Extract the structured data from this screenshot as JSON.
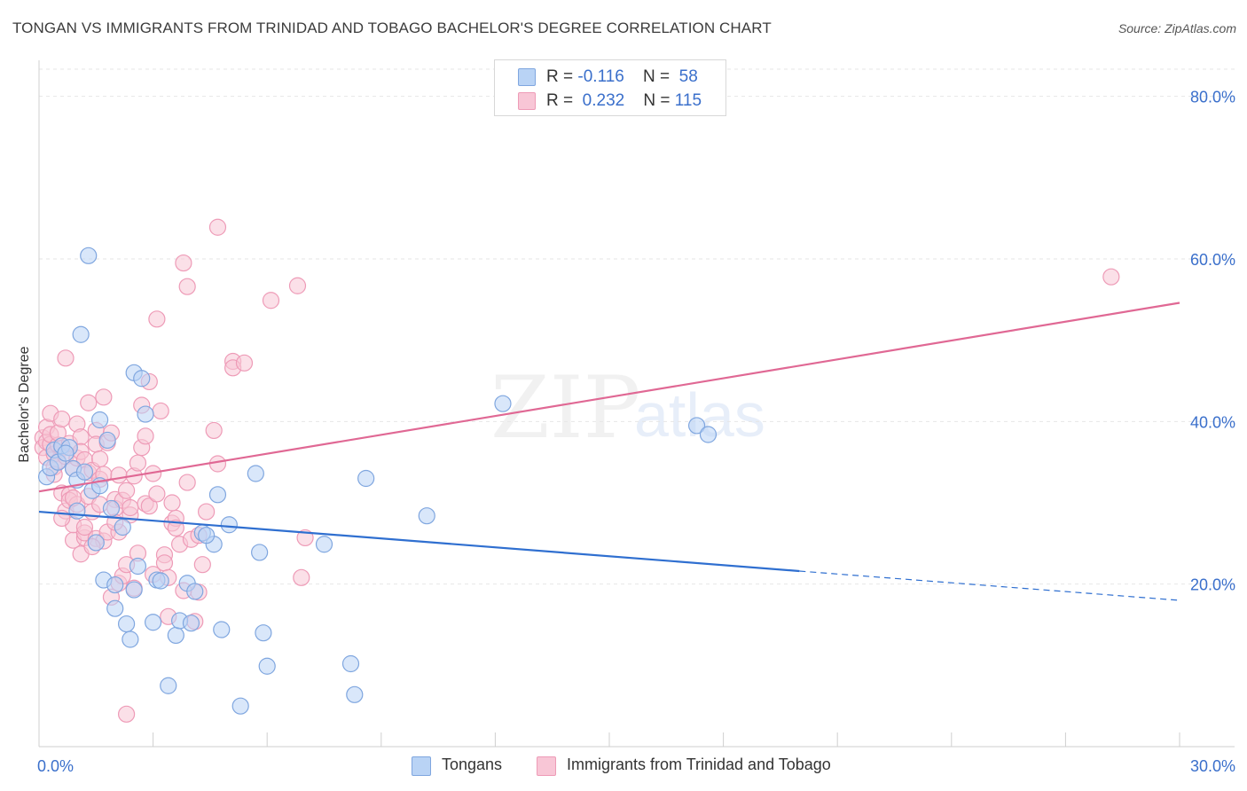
{
  "title": "TONGAN VS IMMIGRANTS FROM TRINIDAD AND TOBAGO BACHELOR'S DEGREE CORRELATION CHART",
  "source": "Source: ZipAtlas.com",
  "watermark": {
    "zip": "ZIP",
    "atlas": "atlas"
  },
  "stats": [
    {
      "r_label": "R =",
      "r_value": "-0.116",
      "n_label": "N =",
      "n_value": "58"
    },
    {
      "r_label": "R =",
      "r_value": "0.232",
      "n_label": "N =",
      "n_value": "115"
    }
  ],
  "legend": {
    "series1": "Tongans",
    "series2": "Immigrants from Trinidad and Tobago"
  },
  "chart_data": {
    "type": "scatter",
    "title": "TONGAN VS IMMIGRANTS FROM TRINIDAD AND TOBAGO BACHELOR'S DEGREE CORRELATION CHART",
    "xlabel": "",
    "ylabel": "Bachelor's Degree",
    "xlim": [
      0,
      30
    ],
    "ylim": [
      0,
      84
    ],
    "x_tick_labels": [
      {
        "value": 0,
        "label": "0.0%"
      },
      {
        "value": 30,
        "label": "30.0%"
      }
    ],
    "y_tick_labels": [
      {
        "value": 20,
        "label": "20.0%"
      },
      {
        "value": 40,
        "label": "40.0%"
      },
      {
        "value": 60,
        "label": "60.0%"
      },
      {
        "value": 80,
        "label": "80.0%"
      }
    ],
    "grid": true,
    "colors": {
      "tongans_fill": "#b9d3f5",
      "tongans_stroke": "#7fa6df",
      "tongans_line": "#2f6fd0",
      "trinidad_fill": "#f8c6d6",
      "trinidad_stroke": "#ee9bb7",
      "trinidad_line": "#e06894",
      "tick_label": "#3a6fcb",
      "grid": "#e6e6e6"
    },
    "series": [
      {
        "name": "Tongans",
        "r": -0.116,
        "n": 58,
        "trend": {
          "x0": 0,
          "y0": 28.9,
          "x1": 20,
          "y1": 21.6,
          "dash_x1": 30,
          "dash_y1": 18.0
        },
        "points": [
          [
            0.2,
            33.2
          ],
          [
            0.3,
            34.3
          ],
          [
            0.4,
            36.5
          ],
          [
            0.6,
            37.0
          ],
          [
            0.8,
            36.8
          ],
          [
            0.9,
            34.2
          ],
          [
            1.0,
            29.0
          ],
          [
            1.0,
            32.8
          ],
          [
            1.1,
            50.7
          ],
          [
            1.3,
            60.4
          ],
          [
            1.4,
            31.5
          ],
          [
            1.5,
            25.1
          ],
          [
            1.6,
            32.1
          ],
          [
            1.6,
            40.2
          ],
          [
            1.7,
            20.5
          ],
          [
            1.8,
            37.7
          ],
          [
            1.9,
            29.3
          ],
          [
            2.0,
            17.0
          ],
          [
            2.0,
            19.9
          ],
          [
            2.3,
            15.1
          ],
          [
            2.4,
            13.2
          ],
          [
            2.5,
            19.3
          ],
          [
            2.5,
            46.0
          ],
          [
            2.6,
            22.2
          ],
          [
            2.7,
            45.3
          ],
          [
            2.8,
            40.9
          ],
          [
            3.0,
            15.3
          ],
          [
            3.1,
            20.5
          ],
          [
            3.2,
            20.4
          ],
          [
            3.4,
            7.5
          ],
          [
            3.6,
            13.7
          ],
          [
            3.7,
            15.5
          ],
          [
            3.9,
            20.1
          ],
          [
            4.0,
            15.2
          ],
          [
            4.1,
            19.1
          ],
          [
            4.3,
            26.3
          ],
          [
            4.6,
            24.9
          ],
          [
            4.7,
            31.0
          ],
          [
            4.8,
            14.4
          ],
          [
            5.0,
            27.3
          ],
          [
            5.3,
            5.0
          ],
          [
            5.7,
            33.6
          ],
          [
            5.8,
            23.9
          ],
          [
            5.9,
            14.0
          ],
          [
            6.0,
            9.9
          ],
          [
            7.5,
            24.9
          ],
          [
            8.2,
            10.2
          ],
          [
            8.3,
            6.4
          ],
          [
            8.6,
            33.0
          ],
          [
            10.2,
            28.4
          ],
          [
            12.2,
            42.2
          ],
          [
            17.3,
            39.5
          ],
          [
            17.6,
            38.4
          ],
          [
            0.5,
            35.0
          ],
          [
            0.7,
            36.1
          ],
          [
            1.2,
            33.8
          ],
          [
            2.2,
            27.0
          ],
          [
            4.4,
            26.0
          ]
        ]
      },
      {
        "name": "Immigrants from Trinidad and Tobago",
        "r": 0.232,
        "n": 115,
        "trend": {
          "x0": 0,
          "y0": 31.4,
          "x1": 30,
          "y1": 54.6
        },
        "points": [
          [
            0.1,
            38.0
          ],
          [
            0.1,
            36.8
          ],
          [
            0.2,
            37.5
          ],
          [
            0.2,
            39.3
          ],
          [
            0.2,
            35.6
          ],
          [
            0.3,
            37.2
          ],
          [
            0.3,
            41.0
          ],
          [
            0.3,
            38.4
          ],
          [
            0.4,
            34.4
          ],
          [
            0.4,
            36.0
          ],
          [
            0.5,
            37.1
          ],
          [
            0.5,
            35.1
          ],
          [
            0.5,
            38.6
          ],
          [
            0.6,
            31.2
          ],
          [
            0.6,
            40.3
          ],
          [
            0.6,
            36.7
          ],
          [
            0.7,
            47.8
          ],
          [
            0.7,
            29.0
          ],
          [
            0.7,
            35.7
          ],
          [
            0.8,
            31.0
          ],
          [
            0.8,
            30.3
          ],
          [
            0.8,
            37.3
          ],
          [
            0.9,
            25.4
          ],
          [
            0.9,
            27.3
          ],
          [
            0.9,
            34.2
          ],
          [
            1.0,
            39.7
          ],
          [
            1.0,
            29.8
          ],
          [
            1.0,
            35.5
          ],
          [
            1.1,
            38.1
          ],
          [
            1.1,
            23.7
          ],
          [
            1.1,
            36.3
          ],
          [
            1.2,
            35.3
          ],
          [
            1.2,
            25.7
          ],
          [
            1.2,
            26.3
          ],
          [
            1.3,
            33.7
          ],
          [
            1.3,
            42.3
          ],
          [
            1.3,
            30.8
          ],
          [
            1.4,
            28.9
          ],
          [
            1.4,
            34.0
          ],
          [
            1.5,
            38.9
          ],
          [
            1.5,
            25.6
          ],
          [
            1.5,
            37.2
          ],
          [
            1.6,
            29.8
          ],
          [
            1.6,
            32.9
          ],
          [
            1.7,
            43.0
          ],
          [
            1.7,
            33.5
          ],
          [
            1.7,
            25.3
          ],
          [
            1.8,
            37.4
          ],
          [
            1.8,
            26.4
          ],
          [
            1.9,
            18.4
          ],
          [
            1.9,
            38.6
          ],
          [
            2.0,
            30.4
          ],
          [
            2.0,
            29.3
          ],
          [
            2.1,
            20.1
          ],
          [
            2.1,
            33.4
          ],
          [
            2.1,
            26.4
          ],
          [
            2.2,
            21.0
          ],
          [
            2.2,
            30.3
          ],
          [
            2.3,
            4.0
          ],
          [
            2.3,
            22.4
          ],
          [
            2.4,
            28.5
          ],
          [
            2.4,
            29.4
          ],
          [
            2.5,
            33.3
          ],
          [
            2.5,
            19.5
          ],
          [
            2.6,
            34.9
          ],
          [
            2.7,
            42.0
          ],
          [
            2.7,
            36.8
          ],
          [
            2.8,
            38.2
          ],
          [
            2.8,
            29.9
          ],
          [
            2.9,
            44.9
          ],
          [
            2.9,
            29.6
          ],
          [
            3.0,
            21.2
          ],
          [
            3.1,
            52.6
          ],
          [
            3.1,
            31.1
          ],
          [
            3.2,
            41.3
          ],
          [
            3.3,
            23.6
          ],
          [
            3.3,
            22.6
          ],
          [
            3.4,
            16.0
          ],
          [
            3.4,
            20.8
          ],
          [
            3.5,
            27.5
          ],
          [
            3.6,
            28.1
          ],
          [
            3.6,
            26.9
          ],
          [
            3.7,
            24.9
          ],
          [
            3.8,
            59.5
          ],
          [
            3.9,
            56.6
          ],
          [
            3.9,
            32.5
          ],
          [
            4.0,
            25.5
          ],
          [
            4.1,
            15.4
          ],
          [
            4.2,
            19.0
          ],
          [
            4.3,
            22.4
          ],
          [
            4.4,
            28.9
          ],
          [
            4.6,
            38.9
          ],
          [
            4.7,
            34.8
          ],
          [
            4.7,
            63.9
          ],
          [
            5.1,
            47.4
          ],
          [
            5.1,
            46.6
          ],
          [
            5.4,
            47.2
          ],
          [
            6.1,
            54.9
          ],
          [
            6.8,
            56.7
          ],
          [
            7.0,
            25.7
          ],
          [
            6.9,
            20.8
          ],
          [
            28.2,
            57.8
          ],
          [
            0.4,
            33.5
          ],
          [
            0.9,
            30.6
          ],
          [
            1.4,
            24.6
          ],
          [
            2.0,
            27.6
          ],
          [
            2.6,
            23.8
          ],
          [
            3.0,
            33.6
          ],
          [
            3.8,
            19.2
          ],
          [
            1.6,
            35.4
          ],
          [
            0.6,
            28.1
          ],
          [
            1.2,
            27.0
          ],
          [
            2.3,
            31.5
          ],
          [
            3.5,
            30.0
          ],
          [
            4.2,
            26.0
          ]
        ]
      }
    ]
  }
}
